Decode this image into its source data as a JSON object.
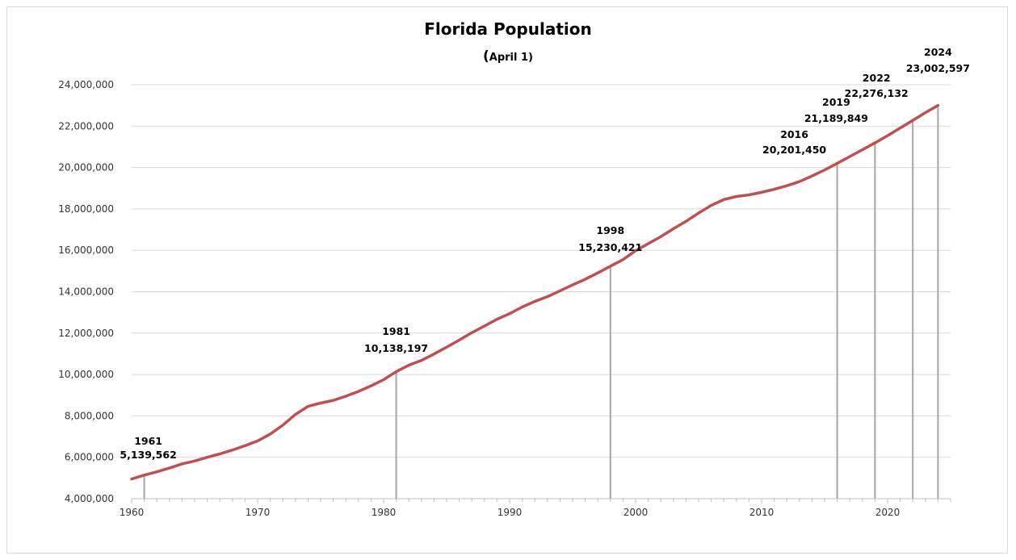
{
  "chart_data": {
    "type": "line",
    "title": "Florida Population",
    "subtitle_open": "(",
    "subtitle_text": "April 1)",
    "xlabel": "",
    "ylabel": "",
    "xlim": [
      1960,
      2025
    ],
    "ylim": [
      4000000,
      24000000
    ],
    "x_ticks": [
      1960,
      1970,
      1980,
      1990,
      2000,
      2010,
      2020
    ],
    "x_tick_labels": [
      "1960",
      "1970",
      "1980",
      "1990",
      "2000",
      "2010",
      "2020"
    ],
    "y_ticks": [
      4000000,
      6000000,
      8000000,
      10000000,
      12000000,
      14000000,
      16000000,
      18000000,
      20000000,
      22000000,
      24000000
    ],
    "y_tick_labels": [
      "4,000,000",
      "6,000,000",
      "8,000,000",
      "10,000,000",
      "12,000,000",
      "14,000,000",
      "16,000,000",
      "18,000,000",
      "20,000,000",
      "22,000,000",
      "24,000,000"
    ],
    "grid": "horizontal",
    "line_color": "#c0504d",
    "drop_line_color": "#a6a6a6",
    "series": [
      {
        "x": [
          1960,
          1961,
          1962,
          1963,
          1964,
          1965,
          1966,
          1967,
          1968,
          1969,
          1970,
          1971,
          1972,
          1973,
          1974,
          1975,
          1976,
          1977,
          1978,
          1979,
          1980,
          1981,
          1982,
          1983,
          1984,
          1985,
          1986,
          1987,
          1988,
          1989,
          1990,
          1991,
          1992,
          1993,
          1994,
          1995,
          1996,
          1997,
          1998,
          1999,
          2000,
          2001,
          2002,
          2003,
          2004,
          2005,
          2006,
          2007,
          2008,
          2009,
          2010,
          2011,
          2012,
          2013,
          2014,
          2015,
          2016,
          2017,
          2018,
          2019,
          2020,
          2021,
          2022,
          2023,
          2024
        ],
        "values": [
          4950000,
          5139562,
          5300000,
          5480000,
          5680000,
          5820000,
          6000000,
          6160000,
          6350000,
          6560000,
          6790000,
          7120000,
          7550000,
          8070000,
          8460000,
          8620000,
          8750000,
          8950000,
          9180000,
          9450000,
          9750000,
          10138197,
          10450000,
          10680000,
          10990000,
          11320000,
          11660000,
          12020000,
          12340000,
          12670000,
          12940000,
          13260000,
          13530000,
          13760000,
          14040000,
          14330000,
          14600000,
          14910000,
          15230421,
          15550000,
          15980000,
          16320000,
          16660000,
          17040000,
          17400000,
          17800000,
          18170000,
          18450000,
          18600000,
          18680000,
          18800000,
          18950000,
          19120000,
          19320000,
          19590000,
          19880000,
          20201450,
          20530000,
          20860000,
          21189849,
          21540000,
          21910000,
          22276132,
          22650000,
          23002597
        ]
      }
    ],
    "annotations": [
      {
        "year": 1961,
        "label_year": "1961",
        "label_value": "5,139,562",
        "value": 5139562
      },
      {
        "year": 1981,
        "label_year": "1981",
        "label_value": "10,138,197",
        "value": 10138197
      },
      {
        "year": 1998,
        "label_year": "1998",
        "label_value": "15,230,421",
        "value": 15230421
      },
      {
        "year": 2016,
        "label_year": "2016",
        "label_value": "20,201,450",
        "value": 20201450
      },
      {
        "year": 2019,
        "label_year": "2019",
        "label_value": "21,189,849",
        "value": 21189849
      },
      {
        "year": 2022,
        "label_year": "2022",
        "label_value": "22,276,132",
        "value": 22276132
      },
      {
        "year": 2024,
        "label_year": "2024",
        "label_value": "23,002,597",
        "value": 23002597
      }
    ]
  }
}
